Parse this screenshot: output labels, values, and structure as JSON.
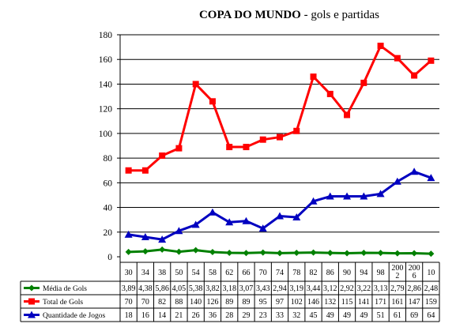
{
  "chart_data": {
    "type": "line",
    "title": "COPA DO MUNDO",
    "subtitle": "gols e partidas",
    "title_separator": " - ",
    "ylim": [
      0,
      180
    ],
    "yticks": [
      0,
      20,
      40,
      60,
      80,
      100,
      120,
      140,
      160,
      180
    ],
    "grid": true,
    "legend_placement": "data-table-left",
    "categories": [
      [
        "30"
      ],
      [
        "34"
      ],
      [
        "38"
      ],
      [
        "50"
      ],
      [
        "54"
      ],
      [
        "58"
      ],
      [
        "62"
      ],
      [
        "66"
      ],
      [
        "70"
      ],
      [
        "74"
      ],
      [
        "78"
      ],
      [
        "82"
      ],
      [
        "86"
      ],
      [
        "90"
      ],
      [
        "94"
      ],
      [
        "98"
      ],
      [
        "200",
        "2"
      ],
      [
        "200",
        "6"
      ],
      [
        "10"
      ]
    ],
    "series": [
      {
        "name": "Média de Gols",
        "color": "#008000",
        "marker": "diamond",
        "values": [
          3.89,
          4.38,
          5.86,
          4.05,
          5.38,
          3.82,
          3.18,
          3.07,
          3.43,
          2.94,
          3.19,
          3.44,
          3.12,
          2.92,
          3.22,
          3.13,
          2.79,
          2.86,
          2.48
        ],
        "labels": [
          "3,89",
          "4,38",
          "5,86",
          "4,05",
          "5,38",
          "3,82",
          "3,18",
          "3,07",
          "3,43",
          "2,94",
          "3,19",
          "3,44",
          "3,12",
          "2,92",
          "3,22",
          "3,13",
          "2,79",
          "2,86",
          "2,48"
        ]
      },
      {
        "name": "Total de Gols",
        "color": "#ff0000",
        "marker": "square",
        "values": [
          70,
          70,
          82,
          88,
          140,
          126,
          89,
          89,
          95,
          97,
          102,
          146,
          132,
          115,
          141,
          171,
          161,
          147,
          159
        ],
        "labels": [
          "70",
          "70",
          "82",
          "88",
          "140",
          "126",
          "89",
          "89",
          "95",
          "97",
          "102",
          "146",
          "132",
          "115",
          "141",
          "171",
          "161",
          "147",
          "159"
        ]
      },
      {
        "name": "Quantidade de Jogos",
        "color": "#0000c0",
        "marker": "triangle",
        "values": [
          18,
          16,
          14,
          21,
          26,
          36,
          28,
          29,
          23,
          33,
          32,
          45,
          49,
          49,
          49,
          51,
          61,
          69,
          64
        ],
        "labels": [
          "18",
          "16",
          "14",
          "21",
          "26",
          "36",
          "28",
          "29",
          "23",
          "33",
          "32",
          "45",
          "49",
          "49",
          "49",
          "51",
          "61",
          "69",
          "64"
        ]
      }
    ]
  }
}
